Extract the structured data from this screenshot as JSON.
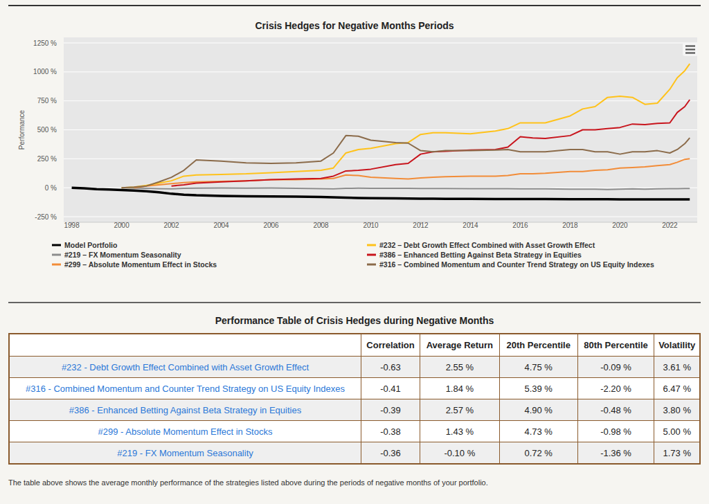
{
  "chart_data": {
    "type": "line",
    "title": "Crisis Hedges for Negative Months Periods",
    "y_label": "Performance",
    "x": [
      1998.0,
      1998.5,
      1999,
      1999.5,
      2000,
      2000.5,
      2001,
      2001.5,
      2002,
      2002.5,
      2003,
      2004,
      2005,
      2006,
      2007,
      2008,
      2008.5,
      2009,
      2009.5,
      2010,
      2011,
      2011.5,
      2012,
      2012.5,
      2013,
      2014,
      2015,
      2015.5,
      2016,
      2016.5,
      2017,
      2018,
      2018.5,
      2019,
      2019.5,
      2020,
      2020.5,
      2021,
      2021.5,
      2022,
      2022.3,
      2022.6,
      2022.8
    ],
    "series": [
      {
        "name": "Model Portfolio",
        "color": "#000000",
        "values": [
          0,
          -5,
          -12,
          -15,
          -20,
          -25,
          -30,
          -40,
          -52,
          -60,
          -65,
          -70,
          -73,
          -75,
          -77,
          -80,
          -82,
          -85,
          -88,
          -90,
          -92,
          -93,
          -95,
          -95,
          -96,
          -96,
          -97,
          -97,
          -98,
          -98,
          -98,
          -99,
          -99,
          -99,
          -99,
          -100,
          -100,
          -100,
          -100,
          -100,
          -100,
          -100,
          -100
        ]
      },
      {
        "name": "#219 – FX Momentum Seasonality",
        "color": "#8c8c8c",
        "values": [
          null,
          null,
          null,
          null,
          0,
          -3,
          -5,
          -8,
          -10,
          -5,
          -3,
          -2,
          -3,
          -2,
          -5,
          -8,
          -10,
          -5,
          -4,
          -5,
          -5,
          -5,
          -6,
          -6,
          -7,
          -8,
          -8,
          -8,
          -10,
          -10,
          -10,
          -12,
          -12,
          -12,
          -15,
          -12,
          -10,
          -12,
          -10,
          -8,
          -8,
          -7,
          -6
        ]
      },
      {
        "name": "#299 – Absolute Momentum Effect in Stocks",
        "color": "#f28c38",
        "values": [
          null,
          null,
          null,
          null,
          null,
          0,
          15,
          25,
          35,
          45,
          50,
          55,
          60,
          70,
          70,
          75,
          80,
          110,
          105,
          90,
          80,
          75,
          85,
          90,
          95,
          100,
          100,
          105,
          120,
          120,
          125,
          140,
          140,
          150,
          155,
          170,
          175,
          180,
          190,
          200,
          220,
          245,
          250
        ]
      },
      {
        "name": "#232 – Debt Growth Effect Combined with Asset Growth Effect",
        "color": "#ffc21a",
        "values": [
          null,
          null,
          null,
          null,
          0,
          5,
          20,
          40,
          60,
          100,
          110,
          115,
          120,
          130,
          140,
          150,
          170,
          300,
          330,
          340,
          380,
          390,
          460,
          475,
          475,
          465,
          490,
          510,
          560,
          560,
          560,
          620,
          680,
          700,
          780,
          790,
          780,
          720,
          730,
          850,
          950,
          1010,
          1070
        ]
      },
      {
        "name": "#386 – Enhanced Betting Against Beta Strategy in Equities",
        "color": "#c8141c",
        "values": [
          null,
          null,
          null,
          null,
          null,
          null,
          null,
          null,
          15,
          25,
          40,
          50,
          60,
          70,
          75,
          80,
          100,
          145,
          150,
          160,
          200,
          210,
          290,
          310,
          315,
          325,
          330,
          350,
          440,
          430,
          425,
          450,
          500,
          500,
          510,
          520,
          550,
          545,
          555,
          560,
          650,
          700,
          760
        ]
      },
      {
        "name": "#316 – Combined Momentum and Counter Trend Strategy on US Equity Indexes",
        "color": "#8b6b4a",
        "values": [
          null,
          null,
          null,
          null,
          0,
          5,
          15,
          50,
          90,
          150,
          240,
          230,
          215,
          210,
          215,
          230,
          300,
          450,
          445,
          410,
          390,
          385,
          320,
          310,
          320,
          320,
          325,
          330,
          310,
          310,
          310,
          330,
          330,
          310,
          310,
          290,
          310,
          310,
          320,
          300,
          330,
          380,
          430
        ]
      }
    ],
    "xlim": [
      1997.9,
      2023.1
    ],
    "ylim": [
      -250,
      1250
    ],
    "xticks": [
      1998,
      2000,
      2002,
      2004,
      2006,
      2008,
      2010,
      2012,
      2014,
      2016,
      2018,
      2020,
      2022
    ],
    "yticks": [
      {
        "value": -250,
        "label": "-250 %"
      },
      {
        "value": 0,
        "label": "0 %"
      },
      {
        "value": 250,
        "label": "250 %"
      },
      {
        "value": 500,
        "label": "500 %"
      },
      {
        "value": 750,
        "label": "750 %"
      },
      {
        "value": 1000,
        "label": "1000 %"
      },
      {
        "value": 1250,
        "label": "1250 %"
      }
    ],
    "grid": true,
    "legend": "bottom"
  },
  "table": {
    "title": "Performance Table of Crisis Hedges during Negative Months",
    "header": [
      "Correlation",
      "Average Return",
      "20th Percentile",
      "80th Percentile",
      "Volatility"
    ],
    "rows": [
      [
        "#232 - Debt Growth Effect Combined with Asset Growth Effect",
        "-0.63",
        "2.55 %",
        "4.75 %",
        "-0.09 %",
        "3.61 %"
      ],
      [
        "#316 - Combined Momentum and Counter Trend Strategy on US Equity Indexes",
        "-0.41",
        "1.84 %",
        "5.39 %",
        "-2.20 %",
        "6.47 %"
      ],
      [
        "#386 - Enhanced Betting Against Beta Strategy in Equities",
        "-0.39",
        "2.57 %",
        "4.90 %",
        "-0.48 %",
        "3.80 %"
      ],
      [
        "#299 - Absolute Momentum Effect in Stocks",
        "-0.38",
        "1.43 %",
        "4.73 %",
        "-0.98 %",
        "5.00 %"
      ],
      [
        "#219 - FX Momentum Seasonality",
        "-0.36",
        "-0.10 %",
        "0.72 %",
        "-1.36 %",
        "1.73 %"
      ]
    ]
  },
  "footnote": "The table above shows the average monthly performance of the strategies listed above during the periods of negative months of your portfolio."
}
